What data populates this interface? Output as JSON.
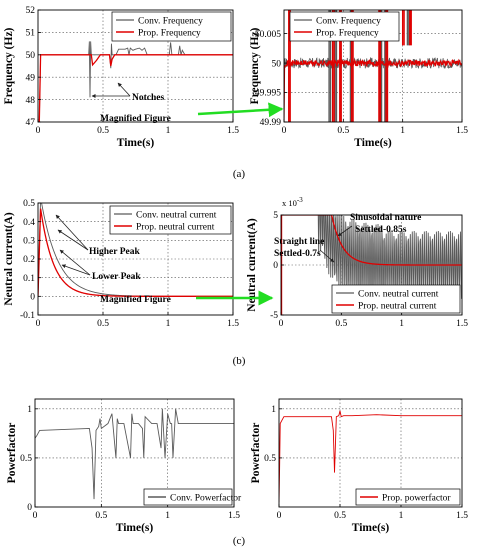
{
  "colors": {
    "conventional": "#5a5a5a",
    "proposed": "#e00000",
    "magnify_arrow": "#22dd22",
    "annotation_arrow": "#222222"
  },
  "captions": {
    "a": "(a)",
    "b": "(b)",
    "c": "(c)"
  },
  "chart_data": [
    {
      "id": "a-left",
      "type": "line",
      "panel": "a",
      "xlabel": "Time(s)",
      "ylabel": "Frequency (Hz)",
      "xlim": [
        0,
        1.5
      ],
      "ylim": [
        47,
        52
      ],
      "xticks": [
        0,
        0.5,
        1,
        1.5
      ],
      "yticks": [
        47,
        48,
        49,
        50,
        51,
        52
      ],
      "grid": true,
      "legend_position": "top-right",
      "legend": [
        "Conv. Frequency",
        "Prop. Frequency"
      ],
      "annotations": {
        "notches": "Notches",
        "magnified": "Magnified Figure"
      },
      "series": [
        {
          "name": "Conv. Frequency",
          "color": "#5a5a5a",
          "x": [
            0,
            0.01,
            0.02,
            0.03,
            0.39,
            0.395,
            0.4,
            0.405,
            0.41,
            0.42,
            0.44,
            0.46,
            0.5,
            0.55,
            0.56,
            0.565,
            0.57,
            0.6,
            0.62,
            0.67,
            0.69,
            0.7,
            0.71,
            0.73,
            0.75,
            0.78,
            0.8,
            0.82,
            0.84,
            1.01,
            1.02,
            1.03,
            1.04,
            1.06,
            1.08,
            1.09,
            1.1,
            1.11,
            1.13,
            1.5
          ],
          "y": [
            47,
            47,
            50,
            50,
            50,
            50.6,
            48.1,
            50.6,
            50,
            50,
            50,
            50,
            50,
            50,
            49.4,
            50.5,
            50,
            50,
            50.25,
            50.25,
            50.3,
            50,
            50.3,
            50.2,
            50.25,
            50.3,
            50.2,
            50.3,
            50,
            50,
            50.55,
            50,
            50,
            50,
            50,
            50.4,
            50,
            50.2,
            50,
            50
          ]
        },
        {
          "name": "Prop. Frequency",
          "color": "#e00000",
          "x": [
            0,
            0.01,
            0.02,
            0.03,
            0.4,
            0.41,
            0.42,
            0.45,
            0.48,
            0.55,
            0.56,
            0.57,
            0.59,
            0.62,
            1.5
          ],
          "y": [
            47,
            47,
            50,
            50,
            50,
            50,
            49.55,
            49.75,
            50,
            50,
            49.5,
            49.8,
            50,
            50,
            50
          ]
        }
      ]
    },
    {
      "id": "a-right",
      "type": "line",
      "panel": "a",
      "xlabel": "Time(s)",
      "ylabel": "Frequency (Hz)",
      "xlim": [
        0,
        1.5
      ],
      "ylim": [
        49.99,
        50.009
      ],
      "xticks": [
        0,
        0.5,
        1,
        1.5
      ],
      "yticks": [
        49.99,
        49.995,
        50,
        50.005
      ],
      "grid": true,
      "legend_position": "top-left",
      "legend": [
        "Conv. Frequency",
        "Prop. Frequency"
      ],
      "series": [
        {
          "name": "Conv. Frequency",
          "color": "#5a5a5a",
          "noise": 0.0009,
          "baseline": 50.0,
          "spikes": [
            [
              0.38,
              49.99,
              50.009
            ],
            [
              0.43,
              49.99,
              50.009
            ],
            [
              0.56,
              49.99,
              50.009
            ],
            [
              0.81,
              49.99,
              50.009
            ],
            [
              0.85,
              49.99,
              50.009
            ],
            [
              1.04,
              50.009,
              50.009
            ]
          ]
        },
        {
          "name": "Prop. Frequency",
          "color": "#e00000",
          "noise": 0.0005,
          "baseline": 50.0,
          "spikes": [
            [
              0.04,
              49.99,
              50.009
            ],
            [
              0.41,
              49.99,
              50.009
            ],
            [
              0.47,
              49.99,
              50.009
            ],
            [
              0.57,
              49.99,
              50.009
            ],
            [
              0.8,
              49.99,
              50.009
            ],
            [
              0.86,
              49.99,
              50.009
            ],
            [
              1.0,
              50.009,
              50.009
            ],
            [
              1.06,
              50.009,
              50.009
            ]
          ]
        }
      ]
    },
    {
      "id": "b-left",
      "type": "line",
      "panel": "b",
      "xlabel": "",
      "ylabel": "Neutral current(A)",
      "xlim": [
        0,
        1.5
      ],
      "ylim": [
        -0.1,
        0.5
      ],
      "xticks": [
        0,
        0.5,
        1,
        1.5
      ],
      "yticks": [
        -0.1,
        0,
        0.1,
        0.2,
        0.3,
        0.4,
        0.5
      ],
      "grid": true,
      "legend_position": "top-right",
      "legend": [
        "Conv. neutral current",
        "Prop. neutral current"
      ],
      "annotations": {
        "higher_peak": "Higher Peak",
        "lower_peak": "Lower Peak",
        "magnified": "Magnified Figure"
      },
      "series": [
        {
          "name": "Conv. neutral current",
          "color": "#5a5a5a",
          "peak": 0.53,
          "tau": 0.13
        },
        {
          "name": "Prop. neutral current",
          "color": "#e00000",
          "peak": 0.47,
          "tau": 0.1
        }
      ]
    },
    {
      "id": "b-right",
      "type": "line",
      "panel": "b",
      "xlabel": "",
      "ylabel": "Neutral current(A)",
      "xlim": [
        0,
        1.5
      ],
      "ylim": [
        -0.005,
        0.005
      ],
      "exponent_label": "x 10",
      "exponent_power": "-3",
      "xticks": [
        0,
        0.5,
        1,
        1.5
      ],
      "yticks": [
        -5,
        0,
        5
      ],
      "grid": true,
      "legend_position": "bottom-right",
      "legend": [
        "Conv. neutral current",
        "Prop. neutral current"
      ],
      "annotations": {
        "sinusoidal": "Sinusoidal nature",
        "settled_conv": "Settled-0.85s",
        "straight": "Straight line",
        "settled_prop": "Settled-0.7s"
      },
      "series": [
        {
          "name": "Conv. neutral current",
          "color": "#5a5a5a"
        },
        {
          "name": "Prop. neutral current",
          "color": "#e00000"
        }
      ]
    },
    {
      "id": "c-left",
      "type": "line",
      "panel": "c",
      "xlabel": "Time(s)",
      "ylabel": "Powerfactor",
      "xlim": [
        0,
        1.5
      ],
      "ylim": [
        0,
        1.1
      ],
      "xticks": [
        0,
        0.5,
        1,
        1.5
      ],
      "yticks": [
        0,
        0.5,
        1
      ],
      "grid": true,
      "legend_position": "bottom-right",
      "legend": [
        "Conv. Powerfactor"
      ],
      "series": [
        {
          "name": "Conv. Powerfactor",
          "color": "#5a5a5a",
          "x": [
            0,
            0.015,
            0.035,
            0.41,
            0.43,
            0.445,
            0.46,
            0.48,
            0.49,
            0.5,
            0.55,
            0.58,
            0.61,
            0.62,
            0.63,
            0.67,
            0.72,
            0.73,
            0.74,
            0.78,
            0.81,
            0.82,
            0.83,
            0.88,
            0.92,
            0.95,
            0.96,
            0.98,
            1.0,
            1.02,
            1.03,
            1.04,
            1.06,
            1.08,
            1.1,
            1.15,
            1.5
          ],
          "y": [
            0.7,
            0.73,
            0.78,
            0.8,
            0.6,
            0.08,
            0.78,
            0.82,
            0.9,
            0.8,
            0.85,
            0.95,
            0.5,
            0.9,
            0.85,
            0.85,
            0.5,
            0.95,
            0.85,
            0.85,
            0.8,
            0.5,
            0.92,
            0.85,
            0.85,
            0.6,
            1.0,
            0.5,
            0.95,
            0.85,
            0.85,
            0.5,
            1.0,
            0.85,
            0.85,
            0.85,
            0.85
          ]
        }
      ]
    },
    {
      "id": "c-right",
      "type": "line",
      "panel": "c",
      "xlabel": "Time(s)",
      "ylabel": "Powerfactor",
      "xlim": [
        0,
        1.5
      ],
      "ylim": [
        0,
        1.1
      ],
      "xticks": [
        0,
        0.5,
        1,
        1.5
      ],
      "yticks": [
        0.5,
        1
      ],
      "grid": true,
      "legend_position": "bottom-right",
      "legend": [
        "Prop. powerfactor"
      ],
      "series": [
        {
          "name": "Prop. powerfactor",
          "color": "#e00000",
          "x": [
            0,
            0.005,
            0.01,
            0.04,
            0.06,
            0.43,
            0.445,
            0.455,
            0.47,
            0.49,
            0.5,
            0.51,
            0.53,
            0.6,
            0.8,
            1.0,
            1.2,
            1.5
          ],
          "y": [
            0.05,
            0.4,
            0.85,
            0.92,
            0.92,
            0.92,
            0.78,
            0.35,
            0.92,
            0.93,
            0.98,
            0.92,
            0.93,
            0.93,
            0.94,
            0.93,
            0.93,
            0.93
          ]
        }
      ]
    }
  ]
}
